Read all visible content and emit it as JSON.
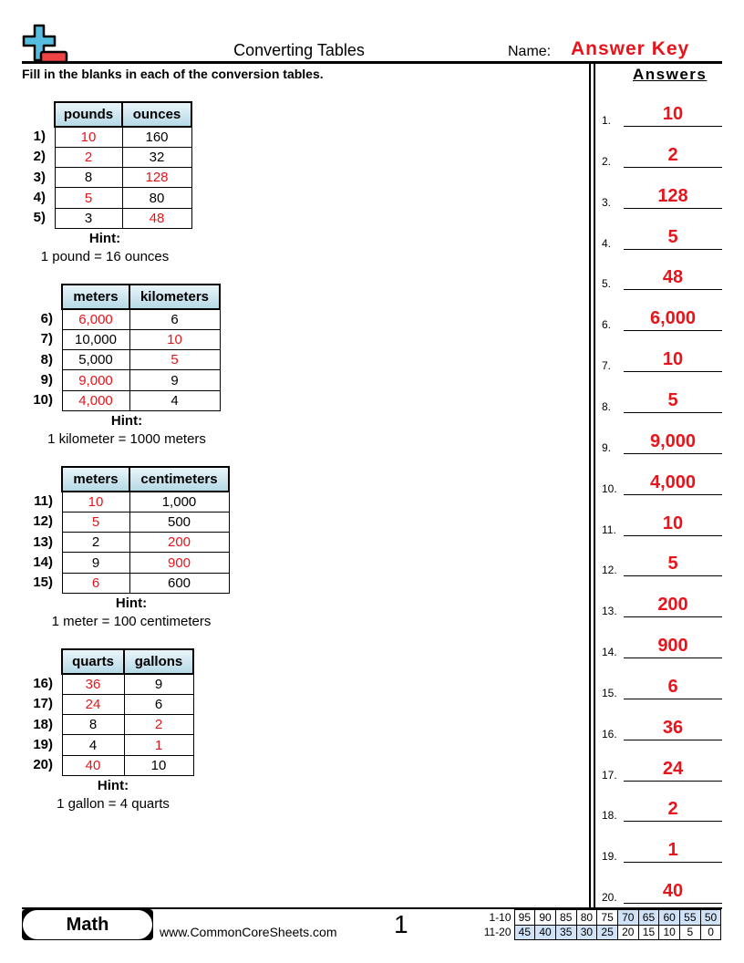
{
  "header": {
    "title": "Converting Tables",
    "name_label": "Name:",
    "name_value": "Answer Key",
    "logo_icon": "plus-minus-logo-icon"
  },
  "instructions": "Fill in the blanks in each of the conversion tables.",
  "colors": {
    "answer_red": "#e8141b",
    "header_blue": "#b5d9e6",
    "score_highlight": "#cfe2f7"
  },
  "tables": [
    {
      "headers": [
        "pounds",
        "ounces"
      ],
      "hint_label": "Hint:",
      "hint": "1 pound = 16 ounces",
      "rows": [
        {
          "label": "1)",
          "a": "10",
          "b": "160",
          "red": "a"
        },
        {
          "label": "2)",
          "a": "2",
          "b": "32",
          "red": "a"
        },
        {
          "label": "3)",
          "a": "8",
          "b": "128",
          "red": "b"
        },
        {
          "label": "4)",
          "a": "5",
          "b": "80",
          "red": "a"
        },
        {
          "label": "5)",
          "a": "3",
          "b": "48",
          "red": "b"
        }
      ]
    },
    {
      "headers": [
        "meters",
        "kilometers"
      ],
      "hint_label": "Hint:",
      "hint": "1 kilometer = 1000 meters",
      "rows": [
        {
          "label": "6)",
          "a": "6,000",
          "b": "6",
          "red": "a"
        },
        {
          "label": "7)",
          "a": "10,000",
          "b": "10",
          "red": "b"
        },
        {
          "label": "8)",
          "a": "5,000",
          "b": "5",
          "red": "b"
        },
        {
          "label": "9)",
          "a": "9,000",
          "b": "9",
          "red": "a"
        },
        {
          "label": "10)",
          "a": "4,000",
          "b": "4",
          "red": "a"
        }
      ]
    },
    {
      "headers": [
        "meters",
        "centimeters"
      ],
      "hint_label": "Hint:",
      "hint": "1 meter = 100 centimeters",
      "rows": [
        {
          "label": "11)",
          "a": "10",
          "b": "1,000",
          "red": "a"
        },
        {
          "label": "12)",
          "a": "5",
          "b": "500",
          "red": "a"
        },
        {
          "label": "13)",
          "a": "2",
          "b": "200",
          "red": "b"
        },
        {
          "label": "14)",
          "a": "9",
          "b": "900",
          "red": "b"
        },
        {
          "label": "15)",
          "a": "6",
          "b": "600",
          "red": "a"
        }
      ]
    },
    {
      "headers": [
        "quarts",
        "gallons"
      ],
      "hint_label": "Hint:",
      "hint": "1 gallon = 4 quarts",
      "rows": [
        {
          "label": "16)",
          "a": "36",
          "b": "9",
          "red": "a"
        },
        {
          "label": "17)",
          "a": "24",
          "b": "6",
          "red": "a"
        },
        {
          "label": "18)",
          "a": "8",
          "b": "2",
          "red": "b"
        },
        {
          "label": "19)",
          "a": "4",
          "b": "1",
          "red": "b"
        },
        {
          "label": "20)",
          "a": "40",
          "b": "10",
          "red": "a"
        }
      ]
    }
  ],
  "answers": {
    "title": "Answers",
    "items": [
      {
        "n": "1.",
        "v": "10"
      },
      {
        "n": "2.",
        "v": "2"
      },
      {
        "n": "3.",
        "v": "128"
      },
      {
        "n": "4.",
        "v": "5"
      },
      {
        "n": "5.",
        "v": "48"
      },
      {
        "n": "6.",
        "v": "6,000"
      },
      {
        "n": "7.",
        "v": "10"
      },
      {
        "n": "8.",
        "v": "5"
      },
      {
        "n": "9.",
        "v": "9,000"
      },
      {
        "n": "10.",
        "v": "4,000"
      },
      {
        "n": "11.",
        "v": "10"
      },
      {
        "n": "12.",
        "v": "5"
      },
      {
        "n": "13.",
        "v": "200"
      },
      {
        "n": "14.",
        "v": "900"
      },
      {
        "n": "15.",
        "v": "6"
      },
      {
        "n": "16.",
        "v": "36"
      },
      {
        "n": "17.",
        "v": "24"
      },
      {
        "n": "18.",
        "v": "2"
      },
      {
        "n": "19.",
        "v": "1"
      },
      {
        "n": "20.",
        "v": "40"
      }
    ]
  },
  "footer": {
    "subject": "Math",
    "website": "www.CommonCoreSheets.com",
    "page": "1",
    "score_rows": [
      {
        "label": "1-10",
        "values": [
          "95",
          "90",
          "85",
          "80",
          "75",
          "70",
          "65",
          "60",
          "55",
          "50"
        ],
        "highlight_from": 5
      },
      {
        "label": "11-20",
        "values": [
          "45",
          "40",
          "35",
          "30",
          "25",
          "20",
          "15",
          "10",
          "5",
          "0"
        ],
        "highlight_to": 4
      }
    ]
  }
}
